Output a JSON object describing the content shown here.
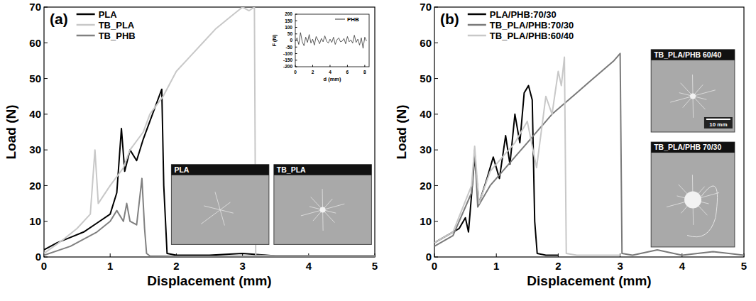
{
  "chart_data": [
    {
      "type": "line",
      "title": "(a)",
      "x_label": "Displacement (mm)",
      "y_label": "Load (N)",
      "xlim": [
        0,
        5
      ],
      "ylim": [
        0,
        70
      ],
      "xticks": [
        0,
        1,
        2,
        3,
        4,
        5
      ],
      "yticks": [
        0,
        10,
        20,
        30,
        40,
        50,
        60,
        70
      ],
      "legend": "top-left",
      "series": [
        {
          "name": "PLA",
          "color": "#000000",
          "x": [
            0,
            0.2,
            0.4,
            0.6,
            0.8,
            1.0,
            1.1,
            1.17,
            1.22,
            1.3,
            1.4,
            1.5,
            1.6,
            1.7,
            1.78,
            1.81,
            1.86,
            2.0,
            2.5,
            3.0,
            3.5,
            4.0,
            4.5,
            5.0
          ],
          "values": [
            2,
            4,
            5.5,
            7,
            9.5,
            12,
            18,
            36,
            24,
            30,
            27,
            33,
            38,
            43,
            47,
            20,
            1,
            0.5,
            0.5,
            1,
            0.3,
            0.3,
            0.3,
            0.3
          ]
        },
        {
          "name": "TB_PLA",
          "color": "#c8c8c8",
          "x": [
            0,
            0.3,
            0.5,
            0.7,
            0.77,
            0.82,
            1.0,
            1.2,
            1.3,
            1.5,
            1.6,
            1.8,
            2.0,
            2.2,
            2.4,
            2.6,
            2.8,
            3.0,
            3.1,
            3.18,
            3.2,
            3.5,
            4.0,
            4.5,
            5.0
          ],
          "values": [
            1,
            5,
            8,
            12,
            30,
            15,
            20,
            25,
            30,
            35,
            40,
            45,
            52,
            56,
            60,
            64,
            67,
            70,
            69,
            70,
            0.5,
            0.3,
            0.3,
            0.3,
            0.3
          ]
        },
        {
          "name": "TB_PHB",
          "color": "#808080",
          "x": [
            0,
            0.4,
            0.8,
            1.0,
            1.1,
            1.2,
            1.25,
            1.3,
            1.4,
            1.48,
            1.52,
            1.55,
            1.6,
            2.0,
            3.0,
            4.0,
            5.0
          ],
          "values": [
            0.5,
            3,
            7,
            10,
            13,
            10,
            15,
            10,
            9,
            22,
            8,
            1,
            0.3,
            0.2,
            0.2,
            0.2,
            0.2
          ]
        }
      ],
      "annotations": [
        {
          "text": "PLA"
        },
        {
          "text": "TB_PLA"
        }
      ]
    },
    {
      "type": "line",
      "x_label": "d (mm)",
      "y_label": "F (N)",
      "xlim": [
        0,
        8.5
      ],
      "ylim": [
        -200,
        200
      ],
      "xticks": [
        0,
        2,
        4,
        6,
        8
      ],
      "yticks": [
        -200,
        -150,
        -100,
        -50,
        0,
        50,
        100,
        150,
        200
      ],
      "legend": "top-right",
      "series": [
        {
          "name": "PHB",
          "color": "#333333",
          "x": [
            0,
            0.2,
            0.4,
            0.6,
            0.8,
            1.0,
            1.2,
            1.4,
            1.6,
            1.8,
            2.0,
            2.2,
            2.4,
            2.6,
            2.8,
            3.0,
            3.2,
            3.4,
            3.6,
            3.8,
            4.0,
            4.2,
            4.4,
            4.6,
            4.8,
            5.0,
            5.2,
            5.4,
            5.6,
            5.8,
            6.0,
            6.2,
            6.4,
            6.6,
            6.8,
            7.0,
            7.2,
            7.4,
            7.6,
            7.8,
            8.0,
            8.2
          ],
          "values": [
            -5,
            20,
            -30,
            60,
            -10,
            -40,
            25,
            -15,
            45,
            -20,
            10,
            -35,
            30,
            5,
            -25,
            15,
            -10,
            35,
            -5,
            -20,
            10,
            -15,
            25,
            -30,
            5,
            20,
            -10,
            -5,
            15,
            -25,
            30,
            -10,
            5,
            -20,
            40,
            -15,
            10,
            -35,
            20,
            -60,
            25,
            -5
          ]
        }
      ]
    },
    {
      "type": "line",
      "title": "(b)",
      "x_label": "Displacement (mm)",
      "y_label": "Load (N)",
      "xlim": [
        0,
        5
      ],
      "ylim": [
        0,
        70
      ],
      "xticks": [
        0,
        1,
        2,
        3,
        4,
        5
      ],
      "yticks": [
        0,
        10,
        20,
        30,
        40,
        50,
        60,
        70
      ],
      "legend": "top-left",
      "series": [
        {
          "name": "PLA/PHB:70/30",
          "color": "#000000",
          "x": [
            0,
            0.2,
            0.4,
            0.5,
            0.55,
            0.65,
            0.72,
            0.85,
            0.95,
            1.05,
            1.15,
            1.22,
            1.3,
            1.38,
            1.45,
            1.52,
            1.58,
            1.62,
            1.66,
            1.8,
            2.0
          ],
          "values": [
            4,
            6,
            8,
            11,
            7,
            28,
            15,
            22,
            28,
            22,
            34,
            26,
            40,
            32,
            46,
            48,
            44,
            10,
            1,
            0.5,
            0.5
          ]
        },
        {
          "name": "TB_PLA/PHB:70/30",
          "color": "#7a7a7a",
          "x": [
            0,
            0.3,
            0.6,
            0.65,
            0.7,
            0.9,
            1.1,
            1.3,
            1.5,
            1.7,
            1.9,
            2.1,
            2.3,
            2.5,
            2.7,
            2.9,
            3.0,
            3.03,
            3.2,
            3.6,
            4.0,
            4.5,
            5.0
          ],
          "values": [
            3,
            6,
            18,
            30,
            14,
            20,
            24,
            28,
            32,
            36,
            40,
            43,
            46,
            49,
            52,
            55,
            57,
            1,
            0.5,
            2,
            0.5,
            1.5,
            0.5
          ]
        },
        {
          "name": "TB_PLA/PHB:60/40",
          "color": "#c8c8c8",
          "x": [
            0,
            0.3,
            0.6,
            0.65,
            0.72,
            0.9,
            1.1,
            1.3,
            1.5,
            1.65,
            1.8,
            1.9,
            2.0,
            2.05,
            2.1,
            2.13,
            2.3,
            3.0
          ],
          "values": [
            4,
            7,
            20,
            31,
            15,
            24,
            28,
            32,
            38,
            25,
            45,
            40,
            52,
            48,
            56,
            1,
            0.5,
            0.5
          ]
        }
      ],
      "annotations": [
        {
          "text": "TB_PLA/PHB 60/40",
          "scale_bar": "10 mm"
        },
        {
          "text": "TB_PLA/PHB 70/30"
        }
      ]
    }
  ]
}
